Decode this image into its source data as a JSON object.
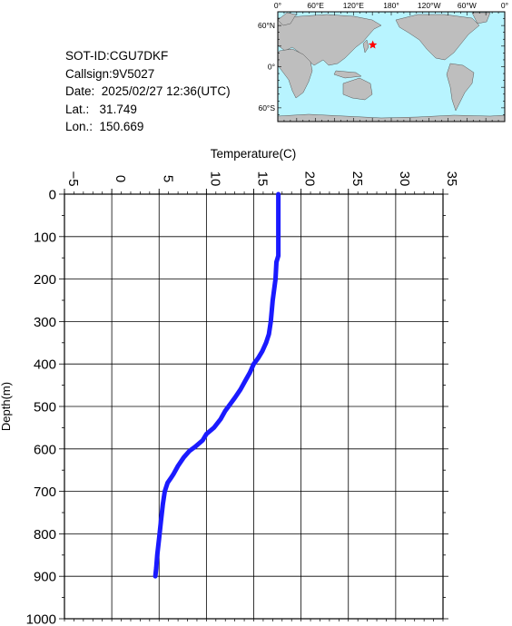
{
  "info": {
    "sot_id": "SOT-ID:CGU7DKF",
    "callsign": "Callsign:9V5027",
    "date_label": "Date:",
    "date_value": "2025/02/27 12:36(UTC)",
    "lat_label": "Lat.:",
    "lat_value": "31.749",
    "lon_label": "Lon.:",
    "lon_value": "150.669"
  },
  "map": {
    "lon_ticks": [
      "0°",
      "60°E",
      "120°E",
      "180°",
      "120°W",
      "60°W",
      "0°"
    ],
    "lat_ticks": [
      "60°N",
      "0°",
      "60°S"
    ],
    "ocean_color": "#b8f4ff",
    "land_color": "#bebebe",
    "marker_color": "#ff0000",
    "marker": {
      "lon": 150.669,
      "lat": 31.749
    }
  },
  "chart_data": {
    "type": "line",
    "xlabel": "Temperature(C)",
    "ylabel": "Depth(m)",
    "xlim": [
      -5,
      35
    ],
    "ylim": [
      0,
      1000
    ],
    "y_inverted": true,
    "x_ticks": [
      "-5",
      "0",
      "5",
      "10",
      "15",
      "20",
      "25",
      "30",
      "35"
    ],
    "y_ticks": [
      "0",
      "100",
      "200",
      "300",
      "400",
      "500",
      "600",
      "700",
      "800",
      "900",
      "1000"
    ],
    "grid": true,
    "line_color": "#1a1aff",
    "series": [
      {
        "points": [
          [
            17.6,
            0
          ],
          [
            17.6,
            50
          ],
          [
            17.6,
            100
          ],
          [
            17.6,
            145
          ],
          [
            17.4,
            160
          ],
          [
            17.3,
            200
          ],
          [
            17.0,
            250
          ],
          [
            16.8,
            300
          ],
          [
            16.6,
            330
          ],
          [
            16.3,
            350
          ],
          [
            15.9,
            370
          ],
          [
            15.5,
            385
          ],
          [
            15.0,
            400
          ],
          [
            14.6,
            420
          ],
          [
            14.1,
            440
          ],
          [
            13.6,
            460
          ],
          [
            13.0,
            480
          ],
          [
            12.5,
            495
          ],
          [
            12.0,
            510
          ],
          [
            11.5,
            530
          ],
          [
            10.8,
            550
          ],
          [
            10.0,
            565
          ],
          [
            9.6,
            580
          ],
          [
            8.8,
            595
          ],
          [
            8.2,
            605
          ],
          [
            7.6,
            620
          ],
          [
            7.0,
            640
          ],
          [
            6.5,
            660
          ],
          [
            6.2,
            670
          ],
          [
            5.9,
            680
          ],
          [
            5.6,
            700
          ],
          [
            5.4,
            730
          ],
          [
            5.2,
            770
          ],
          [
            5.0,
            810
          ],
          [
            4.8,
            850
          ],
          [
            4.7,
            880
          ],
          [
            4.6,
            900
          ]
        ]
      }
    ]
  }
}
